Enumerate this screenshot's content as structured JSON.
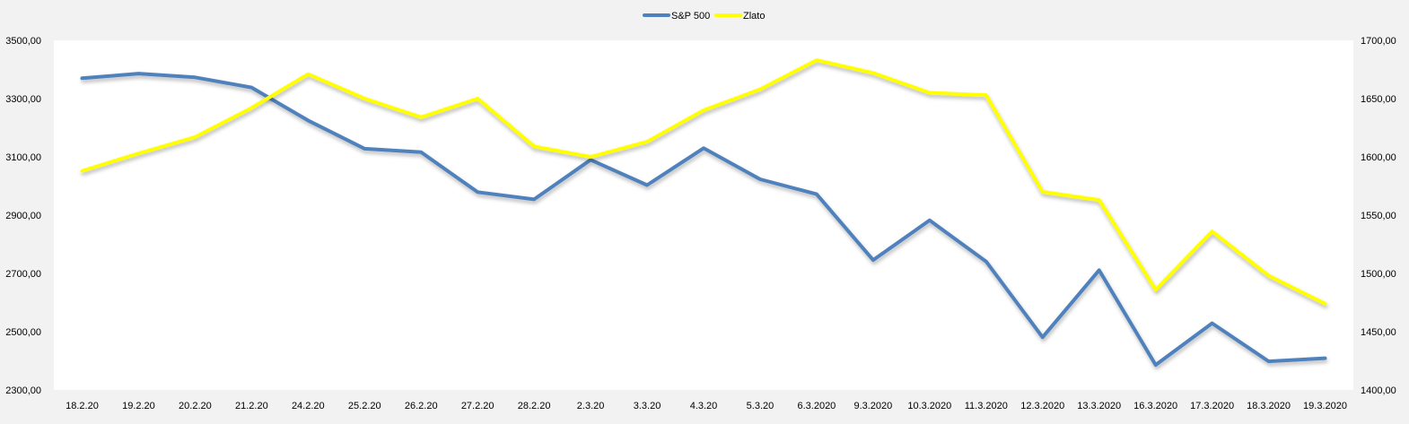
{
  "chart_data": {
    "type": "line",
    "title": "",
    "legend_position": "top-center",
    "grid": false,
    "categories": [
      "18.2.20",
      "19.2.20",
      "20.2.20",
      "21.2.20",
      "24.2.20",
      "25.2.20",
      "26.2.20",
      "27.2.20",
      "28.2.20",
      "2.3.20",
      "3.3.20",
      "4.3.20",
      "5.3.20",
      "6.3.2020",
      "9.3.2020",
      "10.3.2020",
      "11.3.2020",
      "12.3.2020",
      "13.3.2020",
      "16.3.2020",
      "17.3.2020",
      "18.3.2020",
      "19.3.2020"
    ],
    "left_axis": {
      "ylim": [
        2300,
        3500
      ],
      "ticks": [
        "2300,00",
        "2500,00",
        "2700,00",
        "2900,00",
        "3100,00",
        "3300,00",
        "3500,00"
      ]
    },
    "right_axis": {
      "ylim": [
        1400,
        1700
      ],
      "ticks": [
        "1400,00",
        "1450,00",
        "1500,00",
        "1550,00",
        "1600,00",
        "1650,00",
        "1700,00"
      ]
    },
    "series": [
      {
        "name": "S&P 500",
        "axis": "left",
        "color": "#4f81bd",
        "values": [
          3370,
          3386,
          3373,
          3338,
          3225,
          3128,
          3116,
          2979,
          2954,
          3090,
          3003,
          3130,
          3023,
          2972,
          2746,
          2882,
          2741,
          2481,
          2711,
          2386,
          2529,
          2398,
          2409
        ]
      },
      {
        "name": "Zlato",
        "axis": "right",
        "color": "#ffff00",
        "values": [
          1588,
          1603,
          1617,
          1642,
          1671,
          1650,
          1634,
          1650,
          1609,
          1600,
          1613,
          1640,
          1658,
          1683,
          1672,
          1655,
          1653,
          1570,
          1563,
          1486,
          1536,
          1498,
          1474
        ]
      }
    ]
  }
}
